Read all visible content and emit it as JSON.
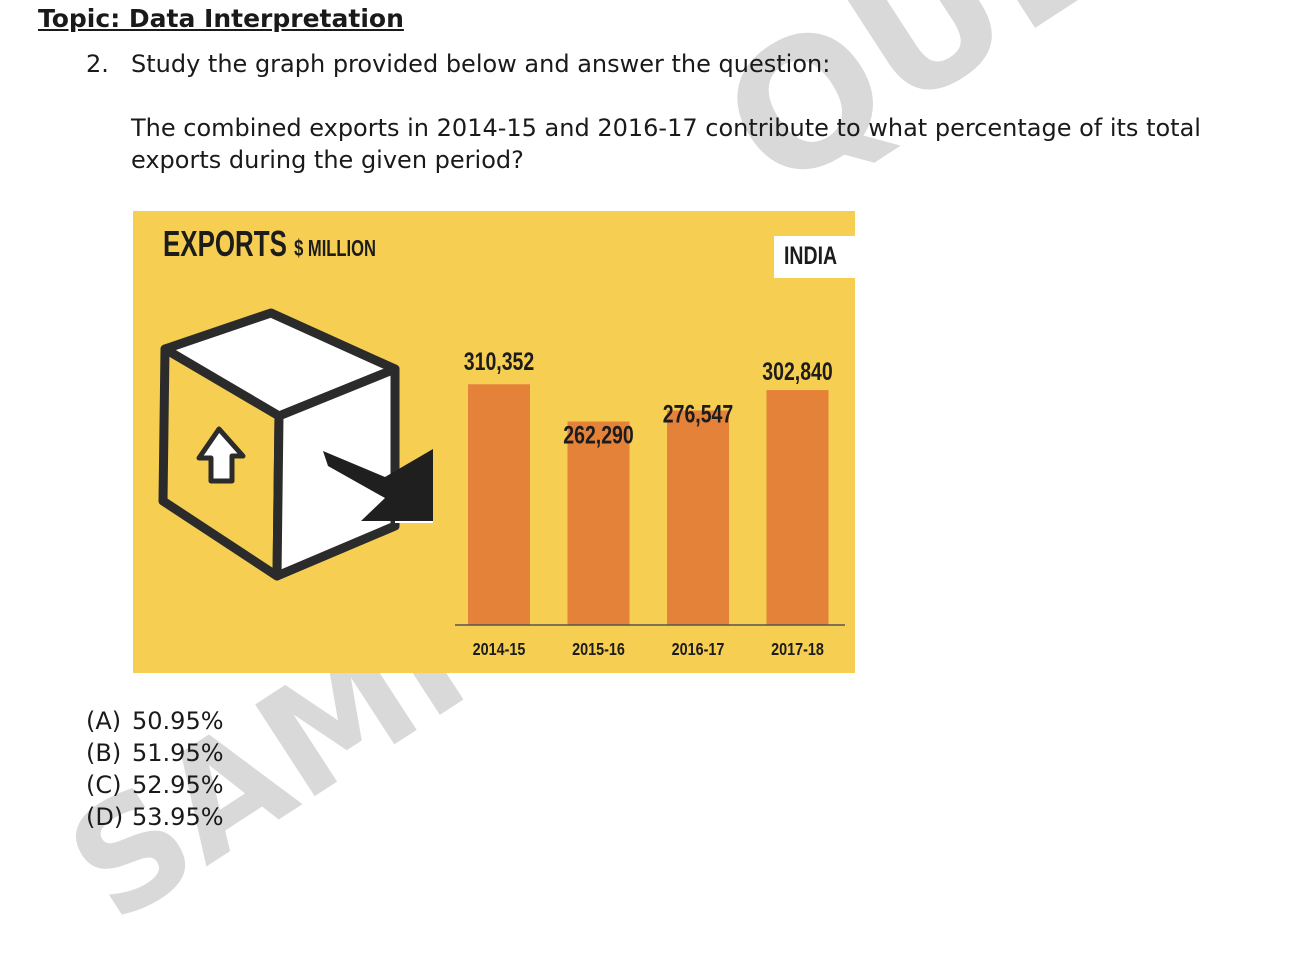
{
  "watermark": {
    "top": "QUESTION",
    "bottom": "SAMPLE"
  },
  "topic": "Topic: Data Interpretation",
  "question": {
    "number": "2.",
    "prompt": "Study the graph provided below and answer the question:",
    "body": "The combined exports in 2014-15 and 2016-17 contribute to what percentage of its total exports during the given period?"
  },
  "chart_data": {
    "type": "bar",
    "title": "EXPORTS",
    "unit": "$ MILLION",
    "tag": "INDIA",
    "categories": [
      "2014-15",
      "2015-16",
      "2016-17",
      "2017-18"
    ],
    "values": [
      310352,
      262290,
      276547,
      302840
    ],
    "value_labels": [
      "310,352",
      "262,290",
      "276,547",
      "302,840"
    ],
    "ylim": [
      0,
      330000
    ],
    "colors": {
      "bar": "#e5823a",
      "background": "#f5ce52",
      "text": "#1c1c1c"
    }
  },
  "options": [
    {
      "letter": "(A)",
      "text": "50.95%"
    },
    {
      "letter": "(B)",
      "text": "51.95%"
    },
    {
      "letter": "(C)",
      "text": "52.95%"
    },
    {
      "letter": "(D)",
      "text": "53.95%"
    }
  ]
}
